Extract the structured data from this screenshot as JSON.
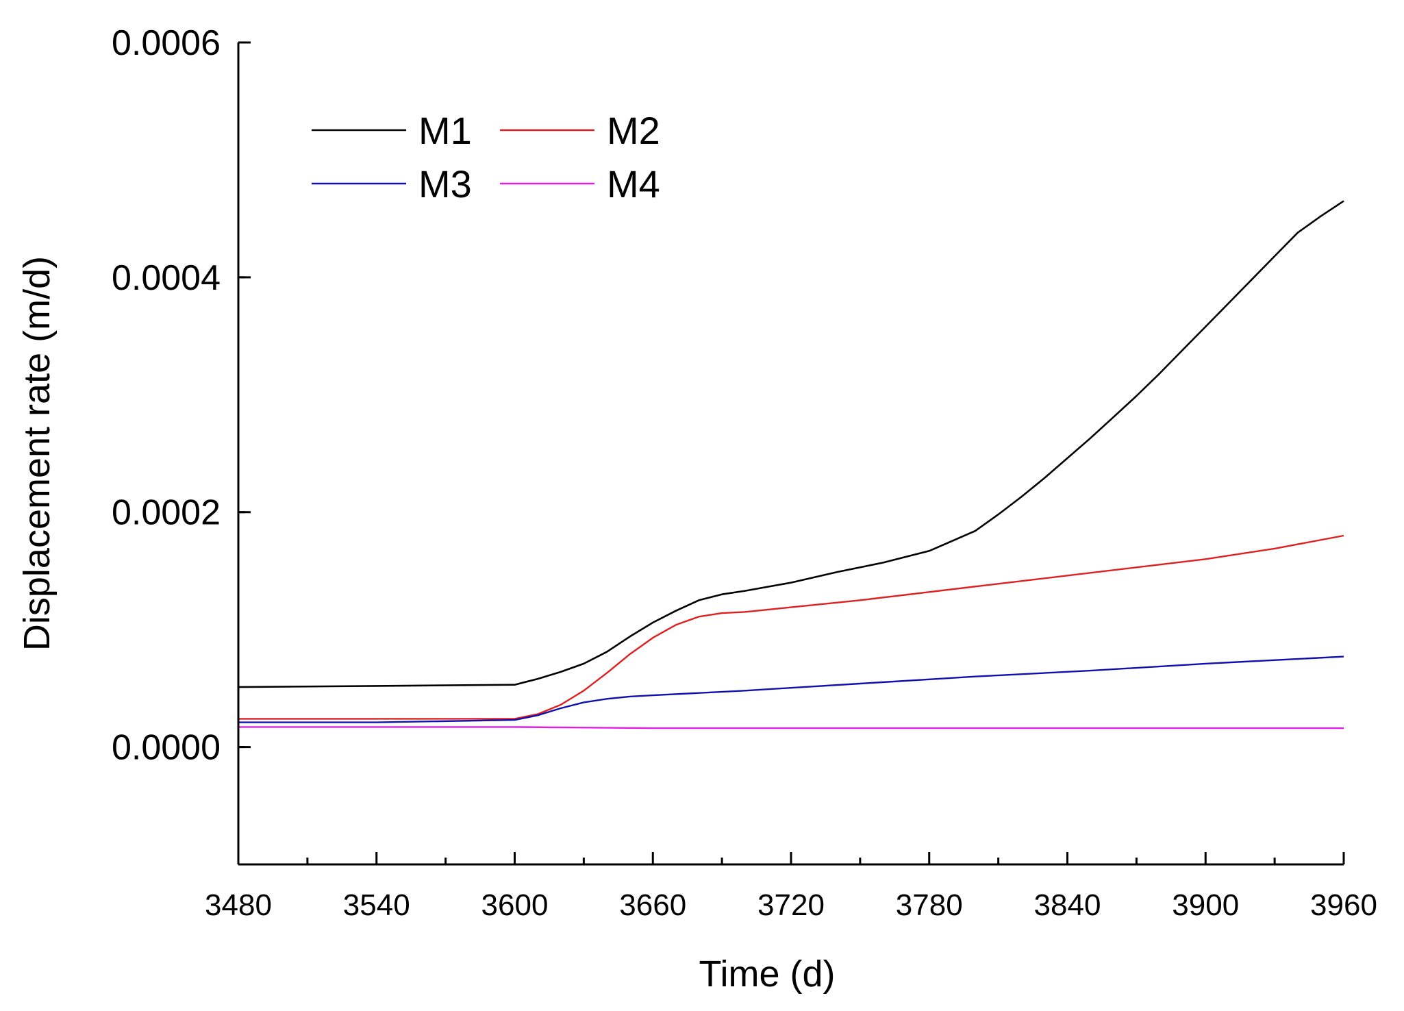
{
  "chart_data": {
    "type": "line",
    "title": "",
    "xlabel": "Time (d)",
    "ylabel": "Displacement rate (m/d)",
    "xlim": [
      3480,
      3960
    ],
    "ylim": [
      -0.0001,
      0.0006
    ],
    "x_ticks": [
      3480,
      3540,
      3600,
      3660,
      3720,
      3780,
      3840,
      3900,
      3960
    ],
    "x_tick_labels": [
      "3480",
      "3540",
      "3600",
      "3660",
      "3720",
      "3780",
      "3840",
      "3900",
      "3960"
    ],
    "y_ticks": [
      0.0,
      0.0002,
      0.0004,
      0.0006
    ],
    "y_tick_labels": [
      "0.0000",
      "0.0002",
      "0.0004",
      "0.0006"
    ],
    "legend_position": "top-left",
    "series": [
      {
        "name": "M1",
        "color": "#000000",
        "x": [
          3480,
          3540,
          3600,
          3610,
          3620,
          3630,
          3640,
          3650,
          3660,
          3670,
          3680,
          3690,
          3700,
          3720,
          3740,
          3760,
          3780,
          3800,
          3810,
          3820,
          3830,
          3840,
          3850,
          3860,
          3870,
          3880,
          3890,
          3900,
          3910,
          3920,
          3930,
          3940,
          3950,
          3960
        ],
        "y": [
          5.1e-05,
          5.2e-05,
          5.3e-05,
          5.8e-05,
          6.4e-05,
          7.1e-05,
          8.1e-05,
          9.4e-05,
          0.000106,
          0.000116,
          0.000125,
          0.00013,
          0.000133,
          0.00014,
          0.000149,
          0.000157,
          0.000167,
          0.000184,
          0.000198,
          0.000213,
          0.000229,
          0.000246,
          0.000263,
          0.000281,
          0.000299,
          0.000318,
          0.000338,
          0.000358,
          0.000378,
          0.000398,
          0.000418,
          0.000438,
          0.000452,
          0.000465
        ]
      },
      {
        "name": "M2",
        "color": "#e02020",
        "x": [
          3480,
          3540,
          3600,
          3610,
          3620,
          3630,
          3640,
          3650,
          3660,
          3670,
          3680,
          3690,
          3700,
          3720,
          3750,
          3780,
          3810,
          3840,
          3870,
          3900,
          3930,
          3960
        ],
        "y": [
          2.4e-05,
          2.4e-05,
          2.4e-05,
          2.8e-05,
          3.6e-05,
          4.8e-05,
          6.3e-05,
          7.9e-05,
          9.3e-05,
          0.000104,
          0.000111,
          0.000114,
          0.000115,
          0.000119,
          0.000125,
          0.000132,
          0.000139,
          0.000146,
          0.000153,
          0.00016,
          0.000169,
          0.00018
        ]
      },
      {
        "name": "M3",
        "color": "#1010b0",
        "x": [
          3480,
          3540,
          3600,
          3610,
          3620,
          3630,
          3640,
          3650,
          3660,
          3700,
          3750,
          3800,
          3850,
          3900,
          3960
        ],
        "y": [
          2.1e-05,
          2.1e-05,
          2.3e-05,
          2.7e-05,
          3.3e-05,
          3.8e-05,
          4.1e-05,
          4.3e-05,
          4.4e-05,
          4.8e-05,
          5.4e-05,
          6e-05,
          6.5e-05,
          7.1e-05,
          7.7e-05
        ]
      },
      {
        "name": "M4",
        "color": "#e020e0",
        "x": [
          3480,
          3540,
          3600,
          3660,
          3720,
          3780,
          3840,
          3900,
          3960
        ],
        "y": [
          1.7e-05,
          1.7e-05,
          1.7e-05,
          1.6e-05,
          1.6e-05,
          1.6e-05,
          1.6e-05,
          1.6e-05,
          1.6e-05
        ]
      }
    ]
  }
}
